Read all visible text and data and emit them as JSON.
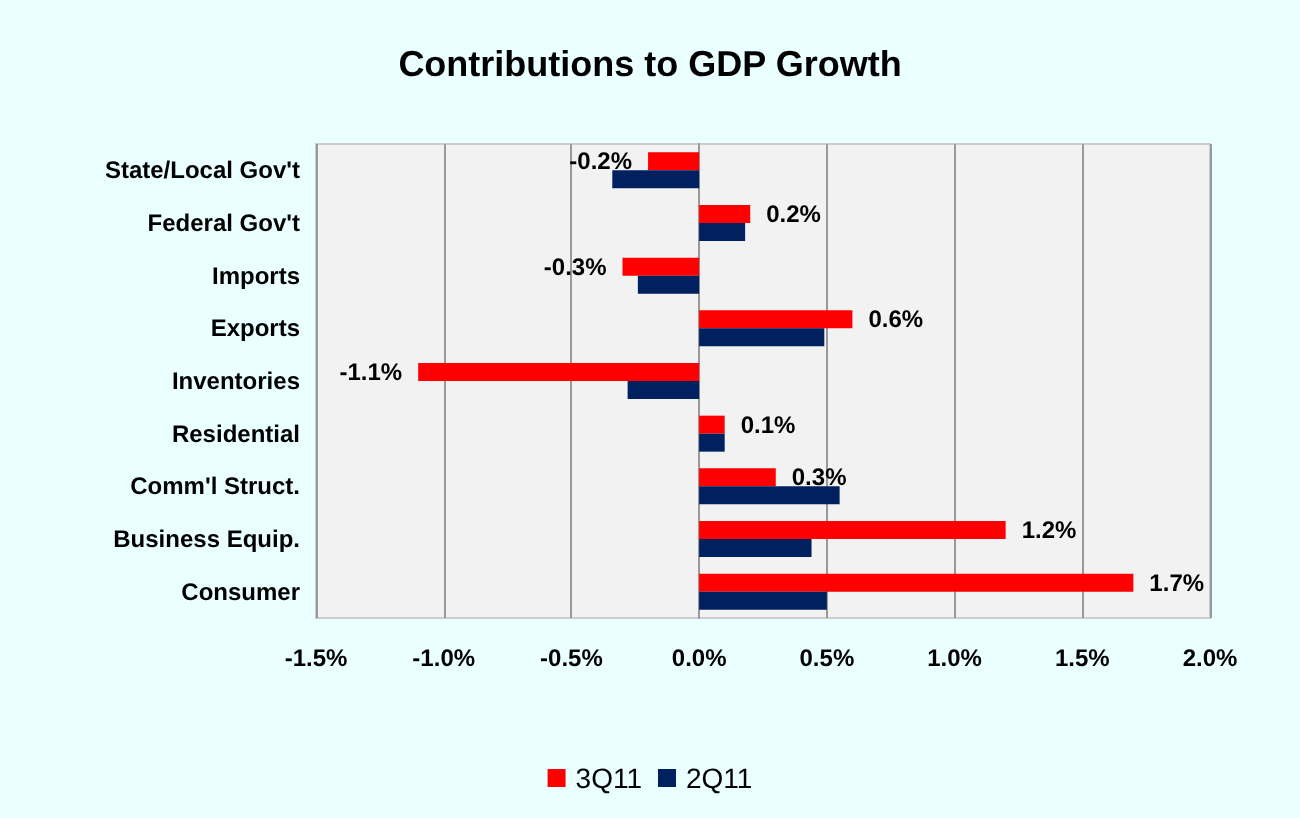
{
  "chart_data": {
    "type": "bar",
    "orientation": "horizontal",
    "title": "Contributions to GDP Growth",
    "categories": [
      "State/Local Gov't",
      "Federal Gov't",
      "Imports",
      "Exports",
      "Inventories",
      "Residential",
      "Comm'l Struct.",
      "Business Equip.",
      "Consumer"
    ],
    "series": [
      {
        "name": "3Q11",
        "color": "#ff0000",
        "values": [
          -0.2,
          0.2,
          -0.3,
          0.6,
          -1.1,
          0.1,
          0.3,
          1.2,
          1.7
        ],
        "value_labels": [
          "-0.2%",
          "0.2%",
          "-0.3%",
          "0.6%",
          "-1.1%",
          "0.1%",
          "0.3%",
          "1.2%",
          "1.7%"
        ]
      },
      {
        "name": "2Q11",
        "color": "#002060",
        "values": [
          -0.34,
          0.18,
          -0.24,
          0.49,
          -0.28,
          0.1,
          0.55,
          0.44,
          0.5
        ]
      }
    ],
    "xlim": [
      -1.5,
      2.0
    ],
    "xticks": [
      {
        "value": -1.5,
        "label": "-1.5%"
      },
      {
        "value": -1.0,
        "label": "-1.0%"
      },
      {
        "value": -0.5,
        "label": "-0.5%"
      },
      {
        "value": 0,
        "label": "0.0%"
      },
      {
        "value": 0.5,
        "label": "0.5%"
      },
      {
        "value": 1.0,
        "label": "1.0%"
      },
      {
        "value": 1.5,
        "label": "1.5%"
      },
      {
        "value": 2.0,
        "label": "2.0%"
      }
    ],
    "grid": "x",
    "legend": "bottom"
  }
}
